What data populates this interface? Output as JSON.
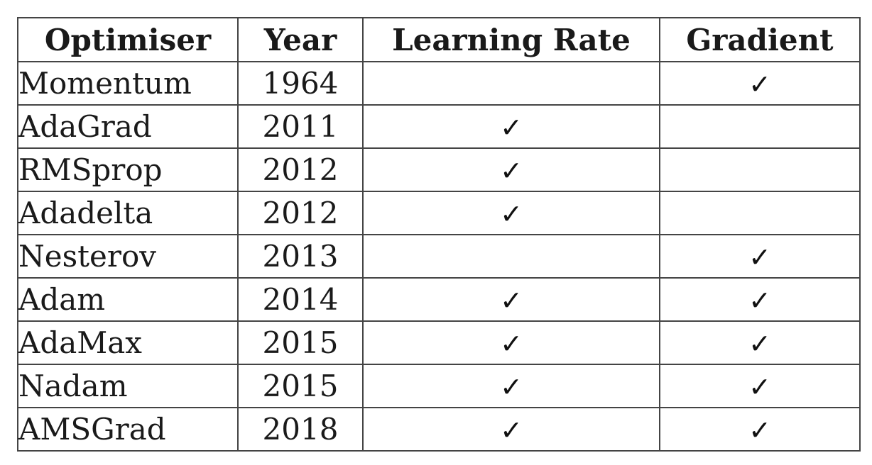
{
  "table": {
    "headers": [
      "Optimiser",
      "Year",
      "Learning Rate",
      "Gradient"
    ],
    "check_symbol": "✓",
    "rows": [
      {
        "optimiser": "Momentum",
        "year": "1964",
        "learning_rate": false,
        "gradient": true
      },
      {
        "optimiser": "AdaGrad",
        "year": "2011",
        "learning_rate": true,
        "gradient": false
      },
      {
        "optimiser": "RMSprop",
        "year": "2012",
        "learning_rate": true,
        "gradient": false
      },
      {
        "optimiser": "Adadelta",
        "year": "2012",
        "learning_rate": true,
        "gradient": false
      },
      {
        "optimiser": "Nesterov",
        "year": "2013",
        "learning_rate": false,
        "gradient": true
      },
      {
        "optimiser": "Adam",
        "year": "2014",
        "learning_rate": true,
        "gradient": true
      },
      {
        "optimiser": "AdaMax",
        "year": "2015",
        "learning_rate": true,
        "gradient": true
      },
      {
        "optimiser": "Nadam",
        "year": "2015",
        "learning_rate": true,
        "gradient": true
      },
      {
        "optimiser": "AMSGrad",
        "year": "2018",
        "learning_rate": true,
        "gradient": true
      }
    ]
  }
}
